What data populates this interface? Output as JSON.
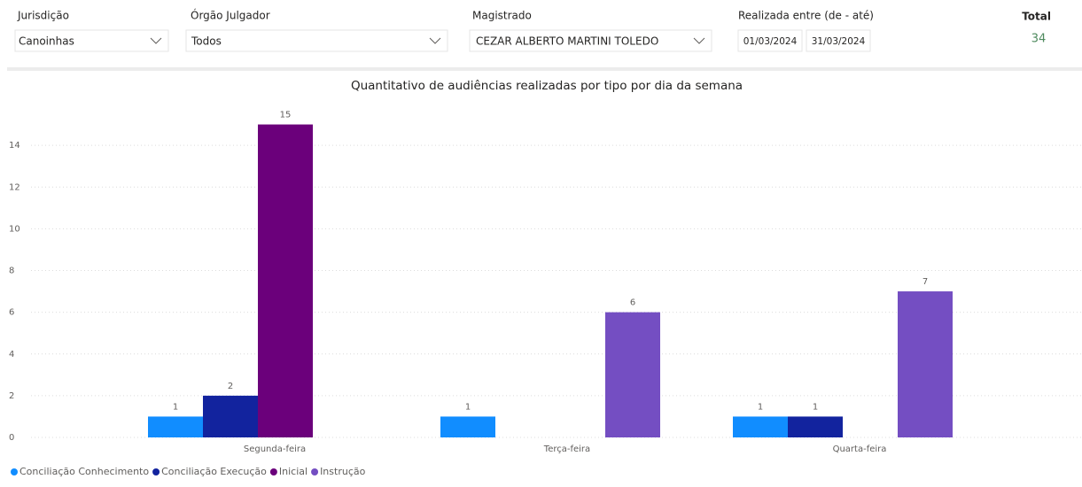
{
  "filters": [
    {
      "label": "Jurisdição",
      "value": "Canoinhas"
    },
    {
      "label": "Órgão Julgador",
      "value": "Todos"
    },
    {
      "label": "Magistrado",
      "value": "CEZAR ALBERTO MARTINI TOLEDO"
    }
  ],
  "date_range": {
    "label": "Realizada entre (de - até)",
    "from": "01/03/2024",
    "to": "31/03/2024"
  },
  "total": {
    "label": "Total",
    "value": 34
  },
  "chart_data": {
    "type": "bar",
    "title": "Quantitativo de audiências realizadas por tipo por dia da semana",
    "categories": [
      "Segunda-feira",
      "Terça-feira",
      "Quarta-feira"
    ],
    "series": [
      {
        "name": "Conciliação Conhecimento",
        "color": "#118dff",
        "values": [
          1,
          1,
          1
        ]
      },
      {
        "name": "Conciliação Execução",
        "color": "#12239e",
        "values": [
          2,
          null,
          1
        ]
      },
      {
        "name": "Inicial",
        "color": "#6b007b",
        "values": [
          15,
          null,
          null
        ]
      },
      {
        "name": "Instrução",
        "color": "#744ec2",
        "values": [
          null,
          6,
          7
        ]
      }
    ],
    "ylim": [
      0,
      16
    ],
    "yticks": [
      0,
      2,
      4,
      6,
      8,
      10,
      12,
      14
    ],
    "grid": true,
    "legend": "bottom-left"
  }
}
